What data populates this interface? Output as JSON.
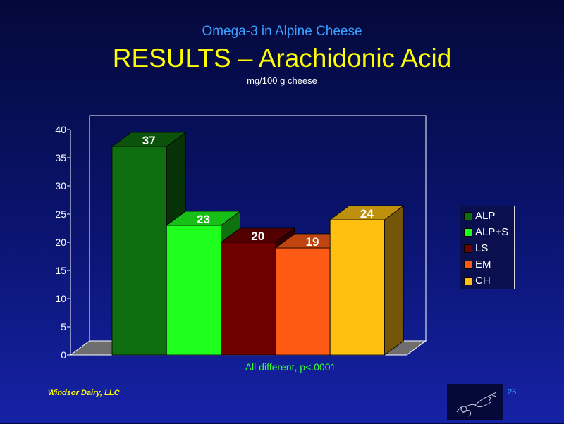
{
  "header": {
    "subtitle": "Omega-3 in Alpine Cheese",
    "title": "RESULTS – Arachidonic Acid",
    "unit": "mg/100 g cheese"
  },
  "chart_data": {
    "type": "bar",
    "categories": [
      "ALP",
      "ALP+S",
      "LS",
      "EM",
      "CH"
    ],
    "values": [
      37,
      23,
      20,
      19,
      24
    ],
    "data_labels": [
      "37",
      "23",
      "20",
      "19",
      "24"
    ],
    "colors": [
      "#0f6e0f",
      "#1eff1e",
      "#6e0000",
      "#ff5a14",
      "#ffc00f"
    ],
    "ylim": [
      0,
      40
    ],
    "yticks": [
      0,
      5,
      10,
      15,
      20,
      25,
      30,
      35,
      40
    ],
    "ytick_labels": [
      "0",
      "5",
      "10",
      "15",
      "20",
      "25",
      "30",
      "35",
      "40"
    ],
    "note": "All different, p<.0001",
    "legend_position": "right",
    "style": "3d",
    "grid": false
  },
  "legend": {
    "items": [
      {
        "label": "ALP",
        "color": "#0f6e0f"
      },
      {
        "label": "ALP+S",
        "color": "#1eff1e"
      },
      {
        "label": "LS",
        "color": "#6e0000"
      },
      {
        "label": "EM",
        "color": "#ff5a14"
      },
      {
        "label": "CH",
        "color": "#ffc00f"
      }
    ]
  },
  "footer": {
    "company": "Windsor Dairy, LLC",
    "page": "25"
  },
  "logo": {
    "icon": "flying-figure-logo-icon"
  }
}
